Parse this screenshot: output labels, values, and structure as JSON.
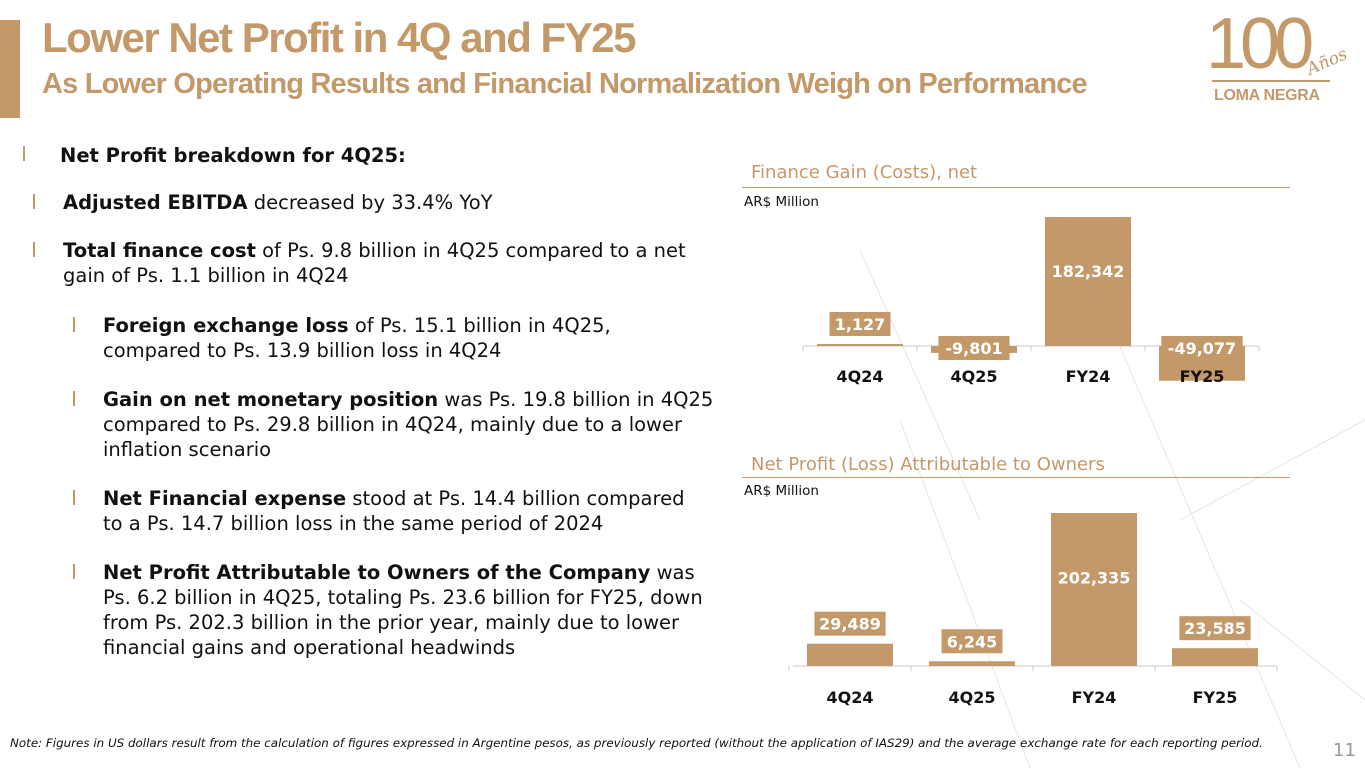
{
  "title": "Lower Net Profit in 4Q and FY25",
  "subtitle": "As Lower Operating Results and Financial Normalization Weigh on Performance",
  "logo": {
    "number": "100",
    "script": "Años",
    "name": "LOMA NEGRA"
  },
  "colors": {
    "accent": "#c4996a",
    "bar": "#c4996a",
    "label_box": "#c4996a",
    "text": "#111111"
  },
  "bullets": {
    "heading": "Net Profit breakdown for 4Q25:",
    "b1": {
      "bold": "Adjusted EBITDA",
      "rest": " decreased by 33.4% YoY"
    },
    "b2": {
      "bold": "Total finance cost",
      "rest": " of Ps. 9.8 billion in 4Q25 compared to a net gain of Ps. 1.1 billion in 4Q24"
    },
    "b3": {
      "bold": "Foreign exchange loss",
      "rest": " of Ps. 15.1 billion in 4Q25, compared to Ps. 13.9 billion loss in 4Q24"
    },
    "b4": {
      "bold": "Gain on net monetary position",
      "rest": " was Ps. 19.8 billion in 4Q25 compared to Ps. 29.8 billion in 4Q24, mainly due to a lower inflation scenario"
    },
    "b5": {
      "bold": "Net Financial expense",
      "rest": " stood at Ps. 14.4 billion compared to a Ps. 14.7 billion loss in the same period of 2024"
    },
    "b6": {
      "bold": "Net Profit Attributable to Owners of the Company",
      "rest": " was Ps. 6.2 billion in 4Q25, totaling Ps. 23.6 billion for FY25, down from Ps. 202.3 billion in the prior year, mainly due to lower financial gains and operational headwinds"
    }
  },
  "chart_data": [
    {
      "type": "bar",
      "title": "Finance Gain (Costs), net",
      "unit": "AR$ Million",
      "categories": [
        "4Q24",
        "4Q25",
        "FY24",
        "FY25"
      ],
      "values": [
        1127,
        -9801,
        182342,
        -49077
      ],
      "labels": [
        "1,127",
        "-9,801",
        "182,342",
        "-49,077"
      ],
      "ylim": [
        -49077,
        182342
      ],
      "grid": false,
      "legend": "none"
    },
    {
      "type": "bar",
      "title": "Net Profit (Loss) Attributable to Owners",
      "unit": "AR$ Million",
      "categories": [
        "4Q24",
        "4Q25",
        "FY24",
        "FY25"
      ],
      "values": [
        29489,
        6245,
        202335,
        23585
      ],
      "labels": [
        "29,489",
        "6,245",
        "202,335",
        "23,585"
      ],
      "ylim": [
        0,
        202335
      ],
      "grid": false,
      "legend": "none"
    }
  ],
  "footer": {
    "note": "Note: Figures in US dollars result from the calculation of figures expressed in Argentine pesos, as previously reported (without the application of IAS29) and the average exchange rate for each reporting period.",
    "page": "11"
  }
}
